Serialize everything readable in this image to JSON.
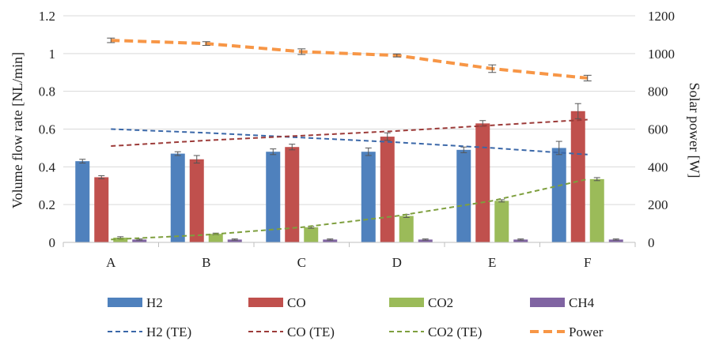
{
  "chart_data": {
    "type": "bar",
    "categories": [
      "A",
      "B",
      "C",
      "D",
      "E",
      "F"
    ],
    "ylabel": "Volume flow rate [NL/min]",
    "y2label": "Solar power [W]",
    "ylim": [
      0,
      1.2
    ],
    "y2lim": [
      0,
      1200
    ],
    "yticks": [
      "0",
      "0.2",
      "0.4",
      "0.6",
      "0.8",
      "1",
      "1.2"
    ],
    "y2ticks": [
      "0",
      "200",
      "400",
      "600",
      "800",
      "1000",
      "1200"
    ],
    "grid": "horizontal",
    "legend_position": "bottom",
    "bar_series": [
      {
        "name": "H2",
        "color": "#4F81BD",
        "values": [
          0.43,
          0.47,
          0.48,
          0.48,
          0.49,
          0.5
        ],
        "errors": [
          0.01,
          0.01,
          0.015,
          0.02,
          0.015,
          0.035
        ]
      },
      {
        "name": "CO",
        "color": "#C0504D",
        "values": [
          0.345,
          0.44,
          0.505,
          0.56,
          0.63,
          0.695
        ],
        "errors": [
          0.008,
          0.02,
          0.015,
          0.02,
          0.015,
          0.04
        ]
      },
      {
        "name": "CO2",
        "color": "#9BBB59",
        "values": [
          0.025,
          0.045,
          0.08,
          0.14,
          0.22,
          0.335
        ],
        "errors": [
          0.005,
          0.004,
          0.005,
          0.008,
          0.006,
          0.008
        ]
      },
      {
        "name": "CH4",
        "color": "#8064A2",
        "values": [
          0.015,
          0.015,
          0.015,
          0.015,
          0.015,
          0.015
        ],
        "errors": [
          0.003,
          0.003,
          0.003,
          0.003,
          0.003,
          0.003
        ]
      }
    ],
    "te_series": [
      {
        "name": "H2 (TE)",
        "color": "#3A67A8",
        "axis": "left",
        "values": [
          0.6,
          0.58,
          0.555,
          0.53,
          0.5,
          0.465
        ]
      },
      {
        "name": "CO (TE)",
        "color": "#9C3B39",
        "axis": "left",
        "values": [
          0.51,
          0.54,
          0.565,
          0.59,
          0.62,
          0.65
        ]
      },
      {
        "name": "CO2 (TE)",
        "color": "#7E9F3E",
        "axis": "left",
        "values": [
          0.015,
          0.04,
          0.08,
          0.14,
          0.22,
          0.335
        ]
      }
    ],
    "power_series": {
      "name": "Power",
      "color": "#F79646",
      "axis": "right",
      "values": [
        1070,
        1053,
        1010,
        990,
        920,
        870
      ],
      "errors": [
        12,
        10,
        15,
        8,
        20,
        15
      ]
    }
  }
}
